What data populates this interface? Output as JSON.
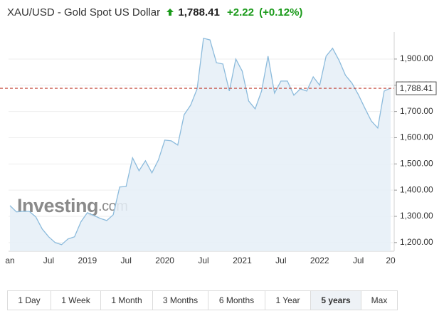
{
  "header": {
    "title": "XAU/USD - Gold Spot US Dollar",
    "price": "1,788.41",
    "change": "+2.22",
    "change_percent": "(+0.12%)"
  },
  "chart_data": {
    "type": "area",
    "categories": [
      "an",
      null,
      null,
      null,
      null,
      null,
      "Jul",
      null,
      null,
      null,
      null,
      null,
      "2019",
      null,
      null,
      null,
      null,
      null,
      "Jul",
      null,
      null,
      null,
      null,
      null,
      "2020",
      null,
      null,
      null,
      null,
      null,
      "Jul",
      null,
      null,
      null,
      null,
      null,
      "2021",
      null,
      null,
      null,
      null,
      null,
      "Jul",
      null,
      null,
      null,
      null,
      null,
      "2022",
      null,
      null,
      null,
      null,
      null,
      "Jul",
      null,
      null,
      null,
      null,
      "20"
    ],
    "values": [
      1341,
      1317,
      1319,
      1319,
      1298,
      1252,
      1222,
      1200,
      1192,
      1214,
      1222,
      1279,
      1314,
      1303,
      1292,
      1284,
      1306,
      1412,
      1414,
      1523,
      1474,
      1512,
      1466,
      1515,
      1591,
      1588,
      1572,
      1688,
      1724,
      1786,
      1979,
      1973,
      1886,
      1881,
      1778,
      1900,
      1854,
      1740,
      1710,
      1778,
      1911,
      1770,
      1816,
      1816,
      1762,
      1786,
      1778,
      1832,
      1800,
      1911,
      1941,
      1895,
      1838,
      1808,
      1764,
      1713,
      1664,
      1637,
      1778,
      1789
    ],
    "color": "#8cbbdc",
    "fill": "#e5eef7",
    "ylim": [
      1167,
      2003
    ],
    "yticks": [
      {
        "value": 1200,
        "label": "1,200.00"
      },
      {
        "value": 1300,
        "label": "1,300.00"
      },
      {
        "value": 1400,
        "label": "1,400.00"
      },
      {
        "value": 1500,
        "label": "1,500.00"
      },
      {
        "value": 1600,
        "label": "1,600.00"
      },
      {
        "value": 1700,
        "label": "1,700.00"
      },
      {
        "value": 1800,
        "label": "1,800.00"
      },
      {
        "value": 1900,
        "label": "1,900.00"
      }
    ],
    "reference_line": {
      "value": 1788.41,
      "label": "1,788.41",
      "color": "#c0392b"
    },
    "grid": true
  },
  "watermark": {
    "brand": "Investing",
    "suffix": ".com"
  },
  "time_ranges": [
    "1 Day",
    "1 Week",
    "1 Month",
    "3 Months",
    "6 Months",
    "1 Year",
    "5 years",
    "Max"
  ]
}
